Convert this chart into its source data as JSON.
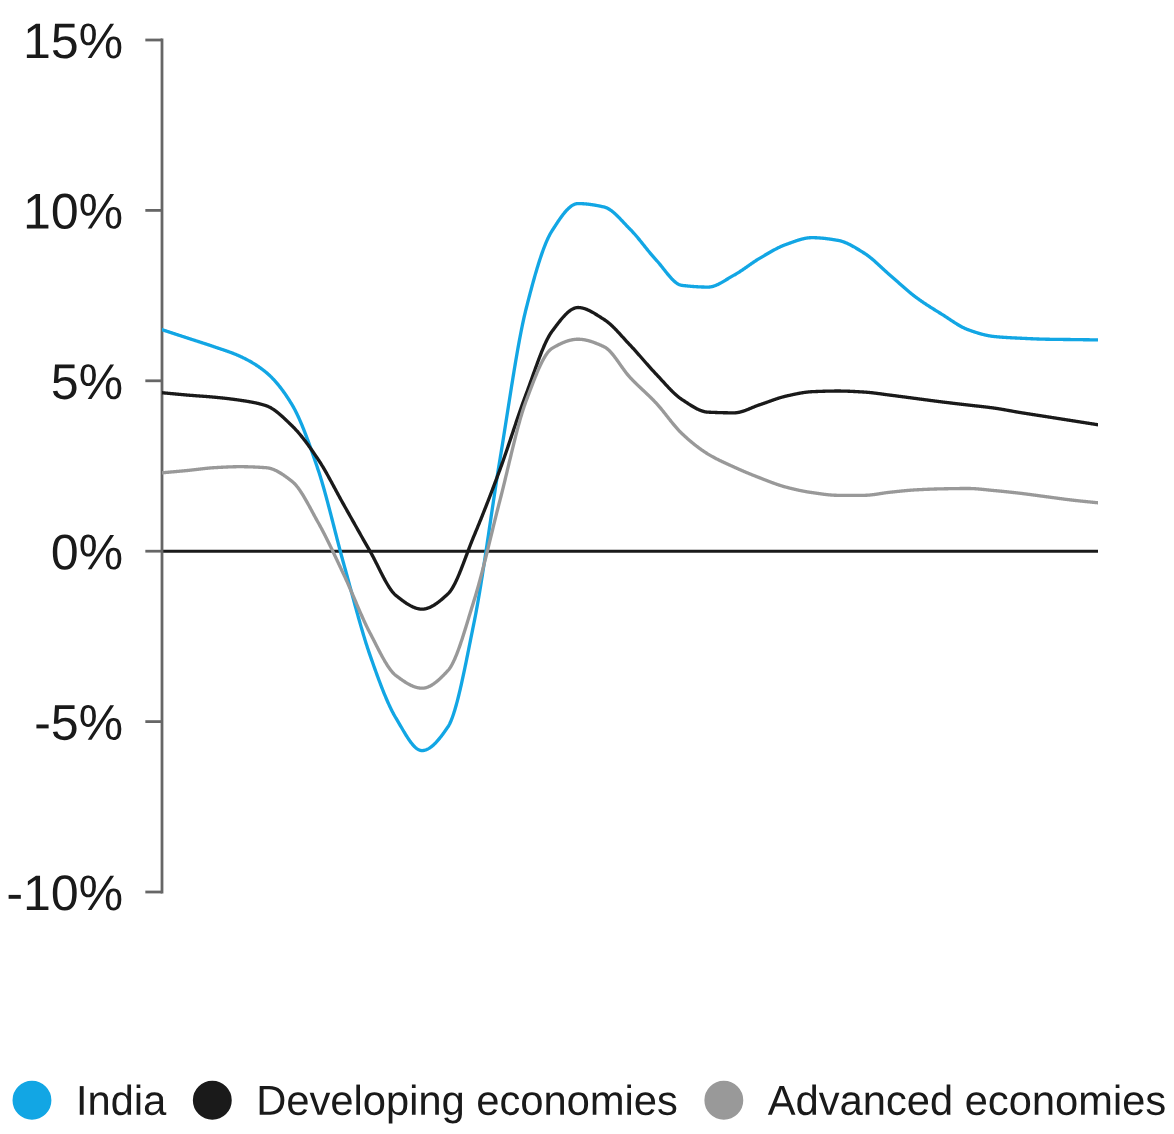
{
  "chart_data": {
    "type": "line",
    "categories": [
      null,
      null,
      null,
      null,
      null,
      null,
      null,
      null,
      null,
      null,
      null,
      null,
      null,
      null,
      null,
      null,
      null,
      null,
      null,
      null,
      null,
      null,
      null,
      null,
      null,
      null,
      null,
      null,
      null,
      null,
      null,
      null,
      null,
      null,
      null,
      null,
      null
    ],
    "series": [
      {
        "name": "India",
        "color": "#12a6e4",
        "values": [
          6.5,
          6.25,
          6.0,
          5.72,
          5.25,
          4.3,
          2.4,
          -0.4,
          -3.05,
          -4.9,
          -5.85,
          -5.15,
          -2.1,
          2.7,
          7.1,
          9.4,
          10.2,
          10.1,
          9.45,
          8.55,
          7.8,
          7.75,
          8.1,
          8.6,
          9.0,
          9.2,
          9.12,
          8.75,
          8.1,
          7.45,
          6.95,
          6.5,
          6.3,
          6.25,
          6.22,
          6.21,
          6.2
        ]
      },
      {
        "name": "Developing economies",
        "color": "#1a1a1a",
        "values": [
          4.65,
          4.58,
          4.52,
          4.43,
          4.27,
          3.68,
          2.7,
          1.35,
          0.0,
          -1.3,
          -1.7,
          -1.25,
          0.45,
          2.4,
          4.6,
          6.45,
          7.15,
          6.8,
          6.05,
          5.2,
          4.45,
          4.08,
          4.06,
          4.3,
          4.55,
          4.68,
          4.7,
          4.67,
          4.58,
          4.48,
          4.38,
          4.29,
          4.2,
          4.07,
          3.95,
          3.83,
          3.71
        ]
      },
      {
        "name": "Advanced economies",
        "color": "#999999",
        "values": [
          2.3,
          2.37,
          2.45,
          2.48,
          2.45,
          2.05,
          0.85,
          -0.7,
          -2.4,
          -3.65,
          -4.02,
          -3.5,
          -1.45,
          1.5,
          4.4,
          5.95,
          6.22,
          6.0,
          5.1,
          4.35,
          3.45,
          2.85,
          2.47,
          2.15,
          1.88,
          1.72,
          1.64,
          1.64,
          1.73,
          1.8,
          1.83,
          1.84,
          1.78,
          1.7,
          1.6,
          1.5,
          1.42
        ]
      }
    ],
    "ylim": [
      -10,
      15
    ],
    "yticks": [
      {
        "value": -10,
        "label": "-10%"
      },
      {
        "value": -5,
        "label": "-5%"
      },
      {
        "value": 0,
        "label": "0%"
      },
      {
        "value": 5,
        "label": "5%"
      },
      {
        "value": 10,
        "label": "10%"
      },
      {
        "value": 15,
        "label": "15%"
      }
    ],
    "ref_lines": [
      {
        "axis": "y",
        "value": 0,
        "color": "#1a1a1a"
      }
    ],
    "tick_labels": "y",
    "legend": "bottom"
  }
}
